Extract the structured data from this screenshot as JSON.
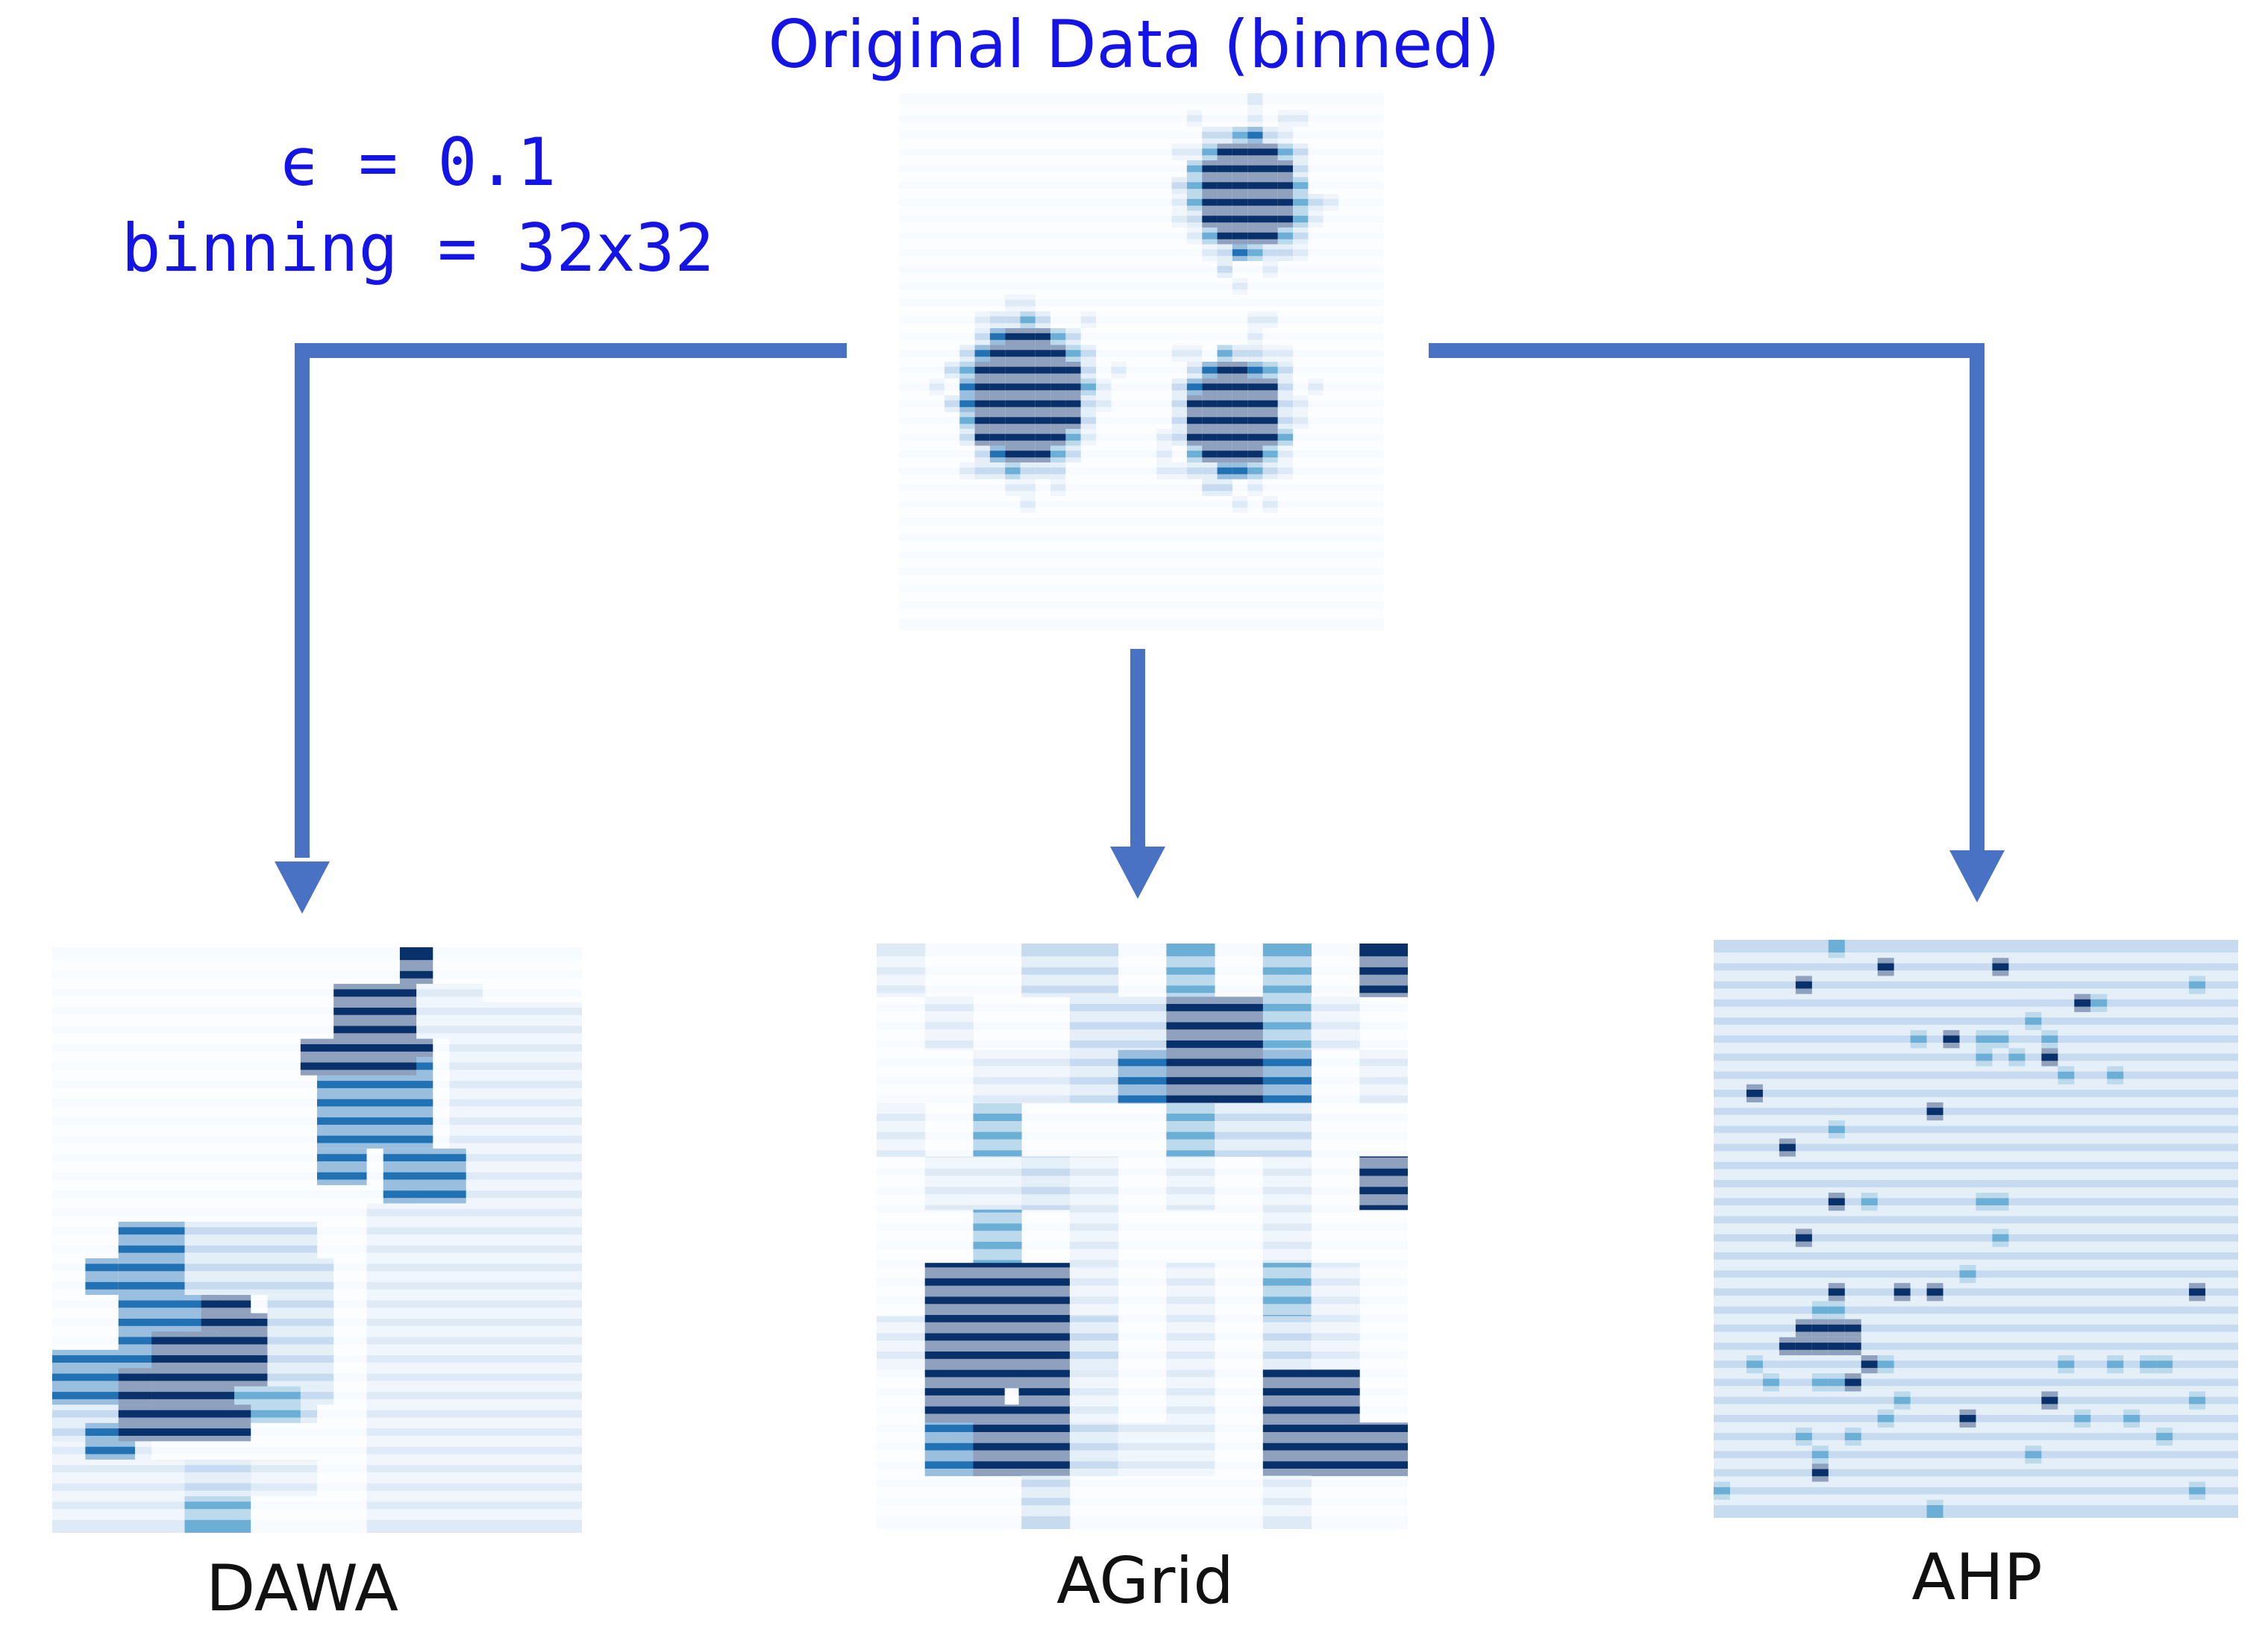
{
  "title": "Original Data (binned)",
  "params": {
    "epsilon": "ϵ = 0.1",
    "binning": "binning = 32x32"
  },
  "panels": {
    "original": {
      "name": "Original Data (binned)"
    },
    "dawa": {
      "label": "DAWA"
    },
    "agrid": {
      "label": "AGrid"
    },
    "ahp": {
      "label": "AHP"
    }
  },
  "colors": {
    "title_text": "#1414e6",
    "params_text": "#1414e6",
    "arrow": "#4a72c4",
    "label_text": "#111111",
    "palette": [
      "#f7fbff",
      "#deebf7",
      "#c6dbef",
      "#6baed6",
      "#2171b5",
      "#08306b"
    ]
  },
  "grid_size": 32,
  "clusters_in_original": 3
}
